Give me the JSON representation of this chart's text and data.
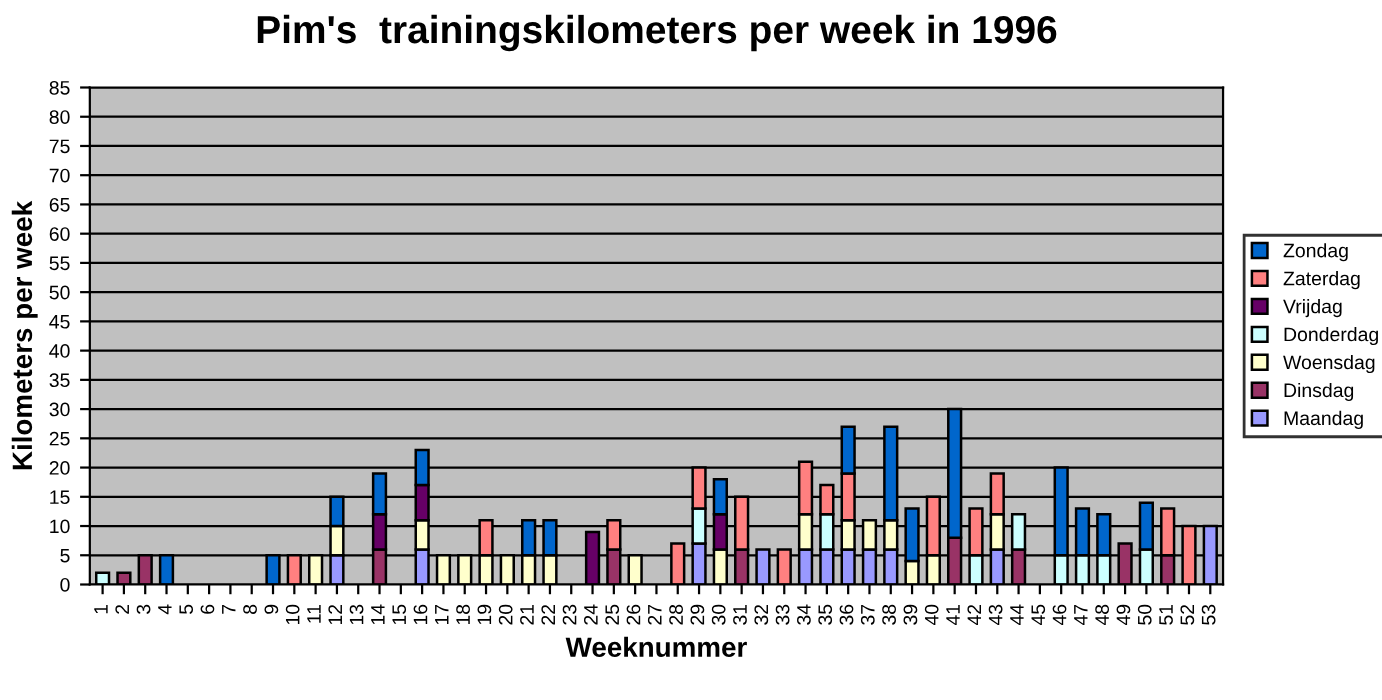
{
  "chart_data": {
    "type": "bar",
    "stacked": true,
    "title": "Pim's  trainingskilometers per week in 1996",
    "xlabel": "Weeknummer",
    "ylabel": "Kilometers per week",
    "categories": [
      "1",
      "2",
      "3",
      "4",
      "5",
      "6",
      "7",
      "8",
      "9",
      "10",
      "11",
      "12",
      "13",
      "14",
      "15",
      "16",
      "17",
      "18",
      "19",
      "20",
      "21",
      "22",
      "23",
      "24",
      "25",
      "26",
      "27",
      "28",
      "29",
      "30",
      "31",
      "32",
      "33",
      "34",
      "35",
      "36",
      "37",
      "38",
      "39",
      "40",
      "41",
      "42",
      "43",
      "44",
      "45",
      "46",
      "47",
      "48",
      "49",
      "50",
      "51",
      "52",
      "53"
    ],
    "series": [
      {
        "name": "Maandag",
        "color": "#9999ff",
        "values": [
          0,
          0,
          0,
          0,
          0,
          0,
          0,
          0,
          0,
          0,
          0,
          5,
          0,
          0,
          0,
          6,
          0,
          0,
          0,
          0,
          0,
          0,
          0,
          0,
          0,
          0,
          0,
          0,
          7,
          0,
          0,
          6,
          0,
          6,
          6,
          6,
          6,
          6,
          0,
          0,
          0,
          0,
          6,
          0,
          0,
          0,
          0,
          0,
          0,
          0,
          0,
          0,
          10
        ]
      },
      {
        "name": "Dinsdag",
        "color": "#993366",
        "values": [
          0,
          2,
          5,
          0,
          0,
          0,
          0,
          0,
          0,
          0,
          0,
          0,
          0,
          6,
          0,
          0,
          0,
          0,
          0,
          0,
          0,
          0,
          0,
          0,
          6,
          0,
          0,
          0,
          0,
          0,
          6,
          0,
          0,
          0,
          0,
          0,
          0,
          0,
          0,
          0,
          8,
          0,
          0,
          6,
          0,
          0,
          0,
          0,
          7,
          0,
          5,
          0,
          0
        ]
      },
      {
        "name": "Woensdag",
        "color": "#ffffcc",
        "values": [
          0,
          0,
          0,
          0,
          0,
          0,
          0,
          0,
          0,
          0,
          5,
          5,
          0,
          0,
          0,
          5,
          5,
          5,
          5,
          5,
          5,
          5,
          0,
          0,
          0,
          5,
          0,
          0,
          0,
          6,
          0,
          0,
          0,
          6,
          0,
          5,
          5,
          5,
          4,
          5,
          0,
          0,
          6,
          0,
          0,
          0,
          0,
          0,
          0,
          0,
          0,
          0,
          0
        ]
      },
      {
        "name": "Donderdag",
        "color": "#ccffff",
        "values": [
          2,
          0,
          0,
          0,
          0,
          0,
          0,
          0,
          0,
          0,
          0,
          0,
          0,
          0,
          0,
          0,
          0,
          0,
          0,
          0,
          0,
          0,
          0,
          0,
          0,
          0,
          0,
          0,
          6,
          0,
          0,
          0,
          0,
          0,
          6,
          0,
          0,
          0,
          0,
          0,
          0,
          5,
          0,
          6,
          0,
          5,
          5,
          5,
          0,
          6,
          0,
          0,
          0
        ]
      },
      {
        "name": "Vrijdag",
        "color": "#660066",
        "values": [
          0,
          0,
          0,
          0,
          0,
          0,
          0,
          0,
          0,
          0,
          0,
          0,
          0,
          6,
          0,
          6,
          0,
          0,
          0,
          0,
          0,
          0,
          0,
          9,
          0,
          0,
          0,
          0,
          0,
          6,
          0,
          0,
          0,
          0,
          0,
          0,
          0,
          0,
          0,
          0,
          0,
          0,
          0,
          0,
          0,
          0,
          0,
          0,
          0,
          0,
          0,
          0,
          0
        ]
      },
      {
        "name": "Zaterdag",
        "color": "#ff8080",
        "values": [
          0,
          0,
          0,
          0,
          0,
          0,
          0,
          0,
          0,
          5,
          0,
          0,
          0,
          0,
          0,
          0,
          0,
          0,
          6,
          0,
          0,
          0,
          0,
          0,
          5,
          0,
          0,
          7,
          7,
          0,
          9,
          0,
          6,
          9,
          5,
          8,
          0,
          0,
          0,
          10,
          0,
          8,
          7,
          0,
          0,
          0,
          0,
          0,
          0,
          0,
          8,
          10,
          0
        ]
      },
      {
        "name": "Zondag",
        "color": "#0066cc",
        "values": [
          0,
          0,
          0,
          5,
          0,
          0,
          0,
          0,
          5,
          0,
          0,
          5,
          0,
          7,
          0,
          6,
          0,
          0,
          0,
          0,
          6,
          6,
          0,
          0,
          0,
          0,
          0,
          0,
          0,
          6,
          0,
          0,
          0,
          0,
          0,
          8,
          0,
          16,
          9,
          0,
          22,
          0,
          0,
          0,
          0,
          15,
          8,
          7,
          0,
          8,
          0,
          0,
          0
        ]
      }
    ],
    "ylim": [
      0,
      85
    ],
    "yticks": [
      0,
      5,
      10,
      15,
      20,
      25,
      30,
      35,
      40,
      45,
      50,
      55,
      60,
      65,
      70,
      75,
      80,
      85
    ],
    "grid": "y",
    "legend": "right"
  }
}
